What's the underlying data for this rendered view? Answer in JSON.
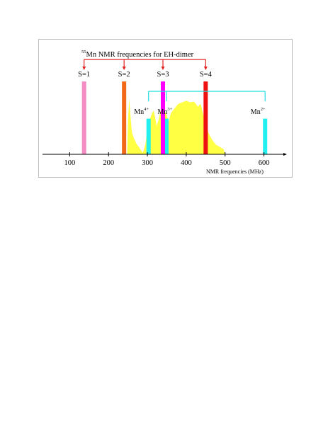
{
  "chart_data": {
    "type": "bar",
    "title": "Mn NMR frequencies for EH-dimer",
    "title_superscript": "55",
    "xlabel": "NMR frequencies (MHz)",
    "ylabel": "",
    "xlim": [
      30,
      650
    ],
    "ylim": [
      0,
      1
    ],
    "xticks": [
      100,
      200,
      300,
      400,
      500,
      600
    ],
    "xtick_labels": [
      "100",
      "200",
      "300",
      "400",
      "500",
      "600"
    ],
    "grid": false,
    "spin_states": [
      {
        "label": "S=1",
        "x": 137,
        "height": 0.98,
        "color": "#f48bc2"
      },
      {
        "label": "S=2",
        "x": 240,
        "height": 0.98,
        "color": "#f06a1a"
      },
      {
        "label": "S=3",
        "x": 340,
        "height": 0.98,
        "color": "#ff00ff"
      },
      {
        "label": "S=4",
        "x": 450,
        "height": 0.98,
        "color": "#ee1111"
      }
    ],
    "valence_lines": [
      {
        "label": "Mn",
        "superscript": "4+",
        "x": 303,
        "height": 0.48,
        "color": "#22f0f0"
      },
      {
        "label": "Mn",
        "superscript": "3+",
        "x": 349,
        "height": 0.48,
        "color": "#22f0f0"
      },
      {
        "label": "Mn",
        "superscript": "2+",
        "x": 603,
        "height": 0.48,
        "color": "#22f0f0"
      }
    ],
    "spectrum": {
      "color": "#ffff44",
      "points": [
        [
          248,
          0.0
        ],
        [
          250,
          0.42
        ],
        [
          253,
          0.75
        ],
        [
          256,
          0.55
        ],
        [
          260,
          0.3
        ],
        [
          265,
          0.22
        ],
        [
          272,
          0.14
        ],
        [
          278,
          0.1
        ],
        [
          284,
          0.05
        ],
        [
          288,
          0.02
        ],
        [
          291,
          0.06
        ],
        [
          295,
          0.14
        ],
        [
          298,
          0.26
        ],
        [
          303,
          0.36
        ],
        [
          307,
          0.48
        ],
        [
          312,
          0.55
        ],
        [
          316,
          0.59
        ],
        [
          320,
          0.5
        ],
        [
          324,
          0.38
        ],
        [
          328,
          0.45
        ],
        [
          333,
          0.56
        ],
        [
          338,
          0.66
        ],
        [
          343,
          0.6
        ],
        [
          350,
          0.52
        ],
        [
          355,
          0.44
        ],
        [
          360,
          0.55
        ],
        [
          370,
          0.62
        ],
        [
          380,
          0.68
        ],
        [
          390,
          0.7
        ],
        [
          400,
          0.72
        ],
        [
          410,
          0.7
        ],
        [
          420,
          0.71
        ],
        [
          430,
          0.64
        ],
        [
          437,
          0.68
        ],
        [
          443,
          0.55
        ],
        [
          450,
          0.42
        ],
        [
          458,
          0.28
        ],
        [
          466,
          0.2
        ],
        [
          476,
          0.13
        ],
        [
          486,
          0.1
        ],
        [
          496,
          0.07
        ],
        [
          500,
          0.0
        ]
      ]
    }
  }
}
